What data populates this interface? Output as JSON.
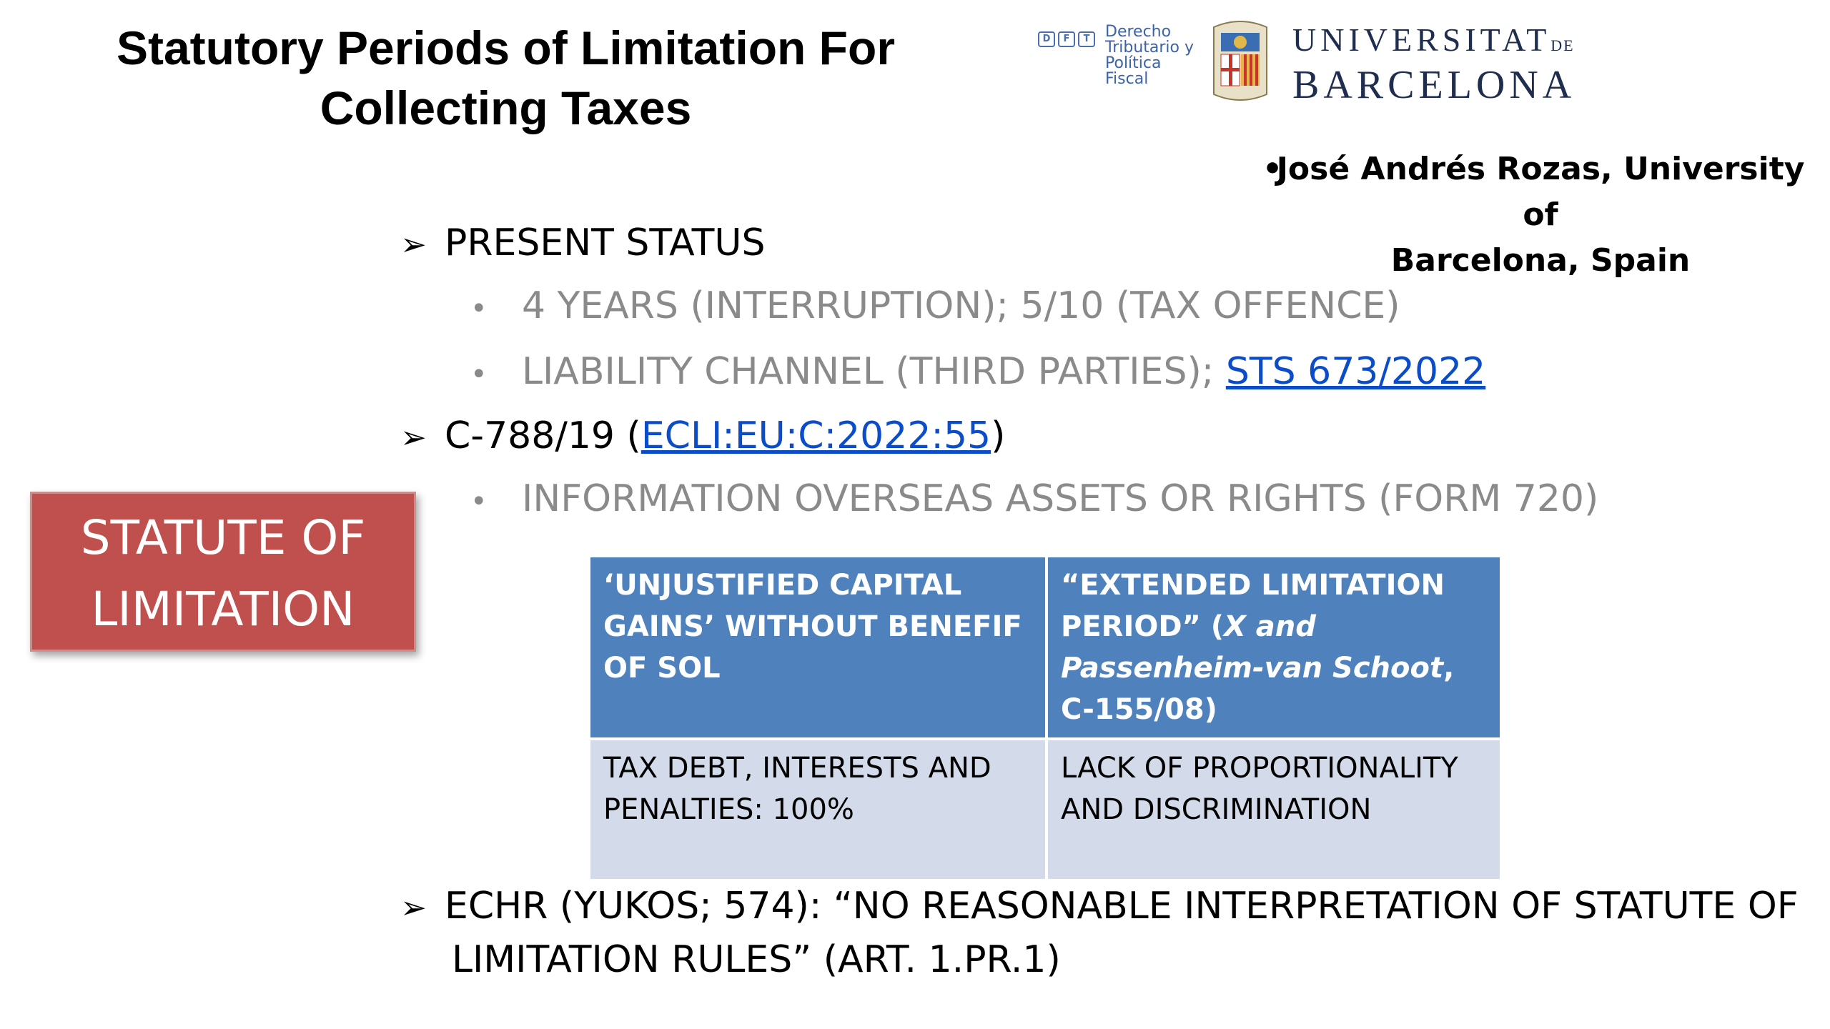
{
  "title": {
    "line1": "Statutory Periods of Limitation For",
    "line2": "Collecting Taxes"
  },
  "logos": {
    "dft_badge": [
      "D",
      "F",
      "T"
    ],
    "dft_lines": [
      "Derecho",
      "Tributario y",
      "Política",
      "Fiscal"
    ],
    "ub_line1": "UNIVERSITAT",
    "ub_de": "DE",
    "ub_line2": "BARCELONA"
  },
  "author": {
    "bullet": "•",
    "line1": "José Andrés Rozas, University of",
    "line2": "Barcelona, Spain"
  },
  "content": {
    "present_status": "PRESENT STATUS",
    "years": "4 YEARS (INTERRUPTION); 5/10 (TAX OFFENCE)",
    "liability_prefix": "LIABILITY CHANNEL (THIRD PARTIES); ",
    "liability_link": "STS 673/2022",
    "case_prefix": "C-788/19 (",
    "case_link": "ECLI:EU:C:2022:55",
    "case_suffix": ")",
    "information": "INFORMATION OVERSEAS ASSETS OR RIGHTS (FORM 720)",
    "echr_line1": "ECHR (YUKOS; 574): “NO REASONABLE INTERPRETATION OF STATUTE OF",
    "echr_line2": "LIMITATION RULES” (ART. 1.PR.1)"
  },
  "statute_box": {
    "line1": "STATUTE OF",
    "line2": "LIMITATION"
  },
  "table": {
    "header_left": "‘UNJUSTIFIED CAPITAL GAINS’ WITHOUT BENEFIF OF SOL",
    "header_right_a": "“EXTENDED LIMITATION PERIOD” (",
    "header_right_italic": "X and Passenheim-van Schoot",
    "header_right_b": ", C-155/08)",
    "cell_left": "TAX DEBT, INTERESTS AND PENALTIES: 100%",
    "cell_right": "LACK OF PROPORTIONALITY AND DISCRIMINATION"
  },
  "colors": {
    "statute_box": "#c0504d",
    "table_header": "#4f81bd",
    "table_cell": "#d3dbea",
    "link": "#0b4dc9",
    "sub_bullet_text": "#8a8a8a"
  }
}
